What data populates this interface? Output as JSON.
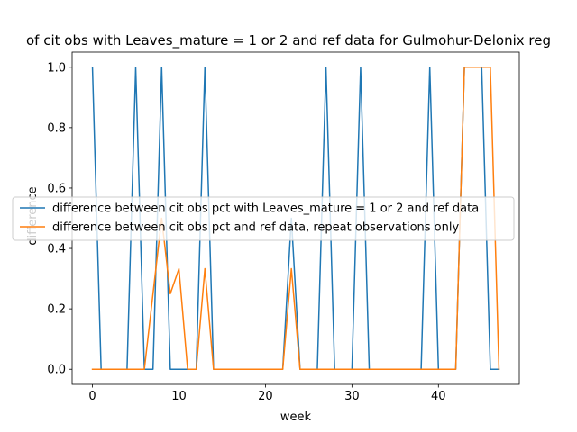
{
  "chart_data": {
    "type": "line",
    "title": "of cit obs with Leaves_mature = 1 or 2 and ref data for Gulmohur-Delonix reg",
    "xlabel": "week",
    "ylabel": "difference",
    "xlim": [
      -2.35,
      49.35
    ],
    "ylim": [
      -0.05,
      1.05
    ],
    "xticks": [
      0,
      10,
      20,
      30,
      40
    ],
    "yticks": [
      0.0,
      0.2,
      0.4,
      0.6,
      0.8,
      1.0
    ],
    "xtick_labels": [
      "0",
      "10",
      "20",
      "30",
      "40"
    ],
    "ytick_labels": [
      "0.0",
      "0.2",
      "0.4",
      "0.6",
      "0.8",
      "1.0"
    ],
    "grid": false,
    "legend_position": "center-left",
    "series": [
      {
        "name": "difference between cit obs pct with Leaves_mature = 1 or 2 and ref data",
        "color": "#1f77b4",
        "x": [
          0,
          1,
          2,
          3,
          4,
          5,
          6,
          7,
          8,
          9,
          10,
          11,
          12,
          13,
          14,
          15,
          16,
          17,
          18,
          19,
          20,
          21,
          22,
          23,
          24,
          25,
          26,
          27,
          28,
          29,
          30,
          31,
          32,
          33,
          34,
          35,
          36,
          37,
          38,
          39,
          40,
          41,
          42,
          43,
          44,
          45,
          46,
          47
        ],
        "y": [
          1,
          0,
          0,
          0,
          0,
          1,
          0,
          0,
          1,
          0,
          0,
          0,
          0,
          1,
          0,
          0,
          0,
          0,
          0,
          0,
          0,
          0,
          0,
          0.5,
          0,
          0,
          0,
          1,
          0,
          0,
          0,
          1,
          0,
          0,
          0,
          0,
          0,
          0,
          0,
          1,
          0,
          0,
          0,
          1,
          1,
          1,
          0,
          0
        ]
      },
      {
        "name": "difference between cit obs pct and ref data, repeat observations only",
        "color": "#ff7f0e",
        "x": [
          0,
          1,
          2,
          3,
          4,
          5,
          6,
          7,
          8,
          9,
          10,
          11,
          12,
          13,
          14,
          15,
          16,
          17,
          18,
          19,
          20,
          21,
          22,
          23,
          24,
          25,
          26,
          27,
          28,
          29,
          30,
          31,
          32,
          33,
          34,
          35,
          36,
          37,
          38,
          39,
          40,
          41,
          42,
          43,
          44,
          45,
          46,
          47
        ],
        "y": [
          0,
          0,
          0,
          0,
          0,
          0,
          0,
          0.25,
          0.5,
          0.25,
          0.333,
          0,
          0,
          0.333,
          0,
          0,
          0,
          0,
          0,
          0,
          0,
          0,
          0,
          0.333,
          0,
          0,
          0,
          0,
          0,
          0,
          0,
          0,
          0,
          0,
          0,
          0,
          0,
          0,
          0,
          0,
          0,
          0,
          0,
          1,
          1,
          1,
          1,
          0
        ]
      }
    ]
  }
}
